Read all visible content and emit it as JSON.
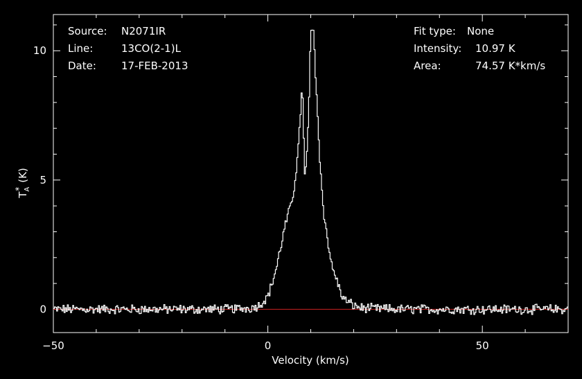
{
  "info_left": {
    "source_key": "Source:",
    "source_val": "N2071IR",
    "line_key": "Line:",
    "line_val": "13CO(2-1)L",
    "date_key": "Date:",
    "date_val": "17-FEB-2013"
  },
  "info_right": {
    "fit_key": "Fit type:",
    "fit_val": "None",
    "intensity_key": "Intensity:",
    "intensity_val": "10.97 K",
    "area_key": "Area:",
    "area_val": "74.57 K*km/s"
  },
  "colors": {
    "background": "#000000",
    "axes": "#ffffff",
    "spectrum": "#ffffff",
    "baseline": "#cc2222"
  },
  "chart_data": {
    "type": "line",
    "title": "",
    "xlabel": "Velocity (km/s)",
    "ylabel_main": "T",
    "ylabel_sub": "A",
    "ylabel_sup": "*",
    "ylabel_unit": "(K)",
    "xlim": [
      -50,
      70
    ],
    "ylim": [
      -0.9,
      11.4
    ],
    "xticks": [
      -50,
      0,
      50
    ],
    "xtick_labels": [
      "−50",
      "0",
      "50"
    ],
    "xminor_step": 10,
    "yticks": [
      0,
      5,
      10
    ],
    "ytick_labels": [
      "0",
      "5",
      "10"
    ],
    "yminor_step": 1,
    "grid": false,
    "baseline_value": 0,
    "series": [
      {
        "x": [
          -50,
          -10,
          -4,
          -2,
          0,
          1,
          2,
          3,
          4,
          5,
          6,
          7,
          7.5,
          8,
          8.6,
          9,
          9.5,
          10,
          10.6,
          11,
          11.5,
          12,
          13,
          14,
          15,
          16,
          17,
          18,
          20,
          22,
          26,
          30,
          70
        ],
        "y": [
          0,
          0,
          0.05,
          0.15,
          0.5,
          1.0,
          1.6,
          2.4,
          3.2,
          3.8,
          4.5,
          6.0,
          7.2,
          8.9,
          5.1,
          5.6,
          7.5,
          10.6,
          10.9,
          9.5,
          8.0,
          6.0,
          3.8,
          2.6,
          1.6,
          1.2,
          0.6,
          0.35,
          0.15,
          0.05,
          0.02,
          0,
          0
        ],
        "noise_rms": 0.1
      }
    ]
  }
}
